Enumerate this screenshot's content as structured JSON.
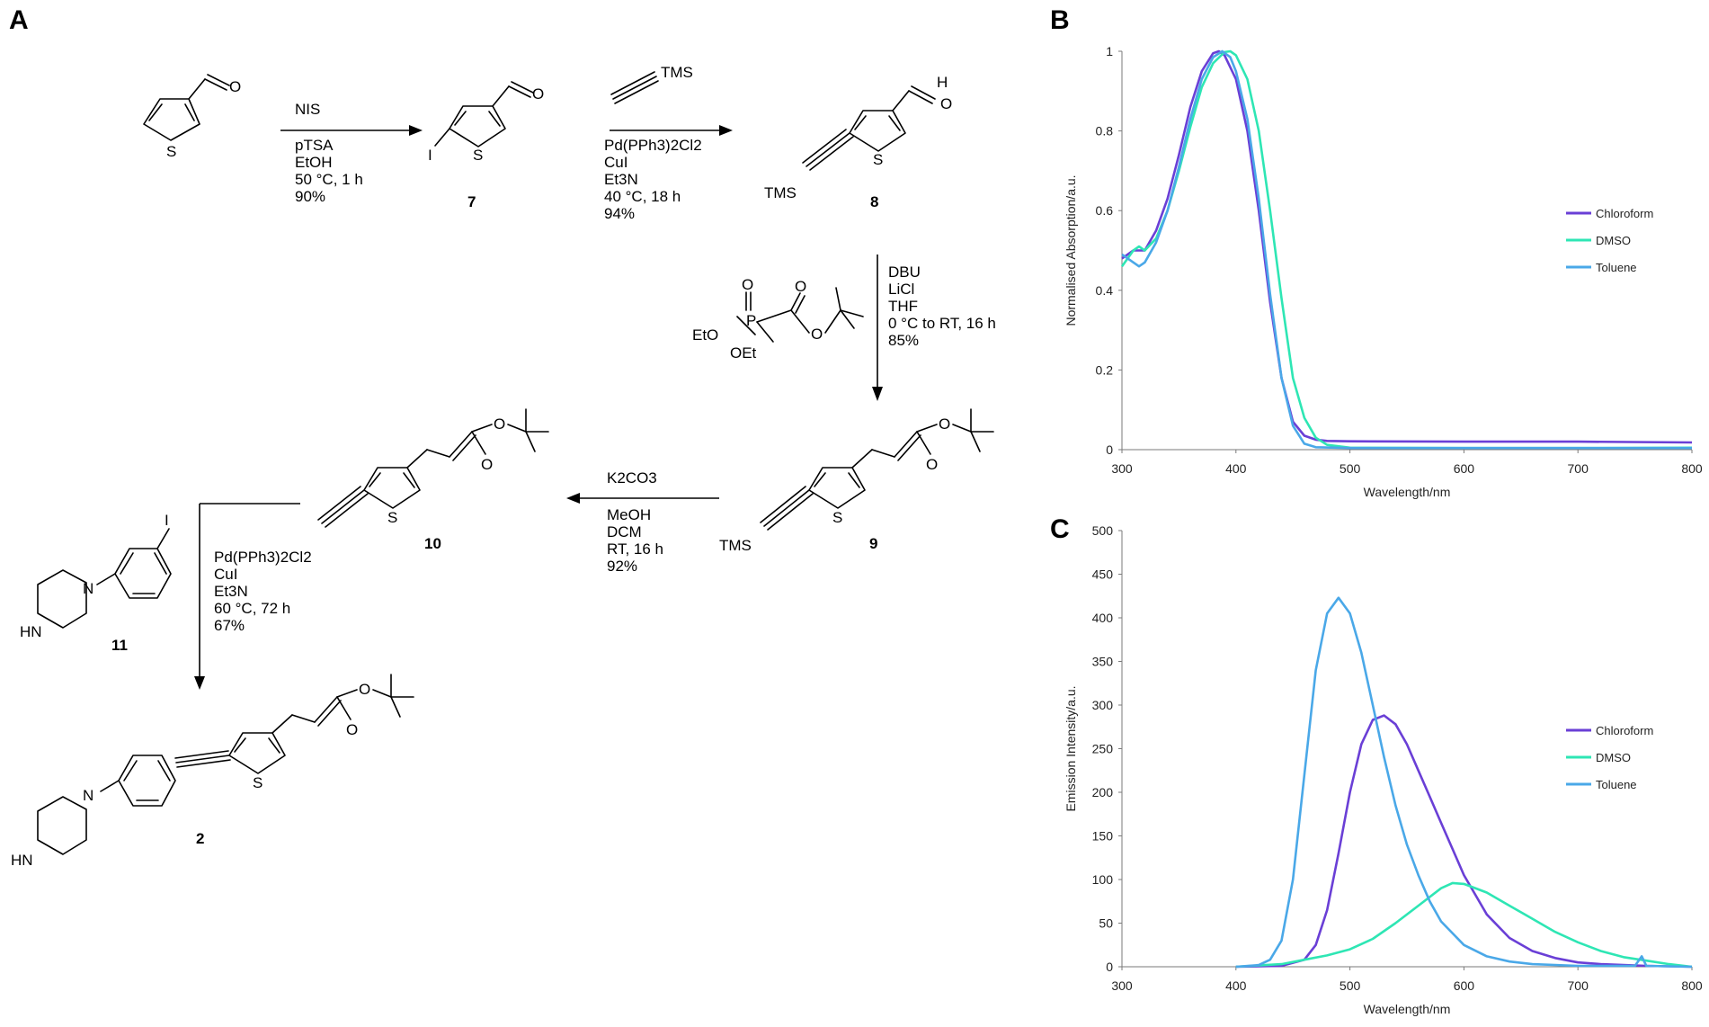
{
  "panels": {
    "A": "A",
    "B": "B",
    "C": "C"
  },
  "scheme": {
    "steps": {
      "s1": [
        "NIS",
        "pTSA",
        "EtOH",
        "50 °C, 1 h",
        "90%"
      ],
      "s2_top": "TMS",
      "s2": [
        "Pd(PPh3)2Cl2",
        "CuI",
        "Et3N",
        "40 °C, 18 h",
        "94%"
      ],
      "s3_reagent": [
        "EtO",
        "OEt",
        "P",
        "O",
        "O",
        "O"
      ],
      "s3": [
        "DBU",
        "LiCl",
        "THF",
        "0 °C to RT, 16 h",
        "85%"
      ],
      "s4": [
        "K2CO3",
        "MeOH",
        "DCM",
        "RT, 16 h",
        "92%"
      ],
      "s5": [
        "Pd(PPh3)2Cl2",
        "CuI",
        "Et3N",
        "60 °C, 72 h",
        "67%"
      ]
    },
    "atoms": {
      "S": "S",
      "O": "O",
      "H": "H",
      "I": "I",
      "TMS": "TMS",
      "HN": "HN",
      "N": "N"
    },
    "compounds": {
      "c7": "7",
      "c8": "8",
      "c9": "9",
      "c10": "10",
      "c11": "11",
      "c2": "2"
    }
  },
  "colors": {
    "chloroform": "#6a3fd6",
    "dmso": "#2ee6b4",
    "toluene": "#4aa8e8",
    "axis": "#7a7a7a"
  },
  "chart_data": [
    {
      "id": "B",
      "type": "line",
      "xlabel": "Wavelength/nm",
      "ylabel": "Normalised Absorption/a.u.",
      "xlim": [
        300,
        800
      ],
      "ylim": [
        0,
        1
      ],
      "xticks": [
        300,
        400,
        500,
        600,
        700,
        800
      ],
      "yticks": [
        0,
        0.2,
        0.4,
        0.6,
        0.8,
        1
      ],
      "legend_position": "right",
      "series": [
        {
          "name": "Chloroform",
          "color": "#6a3fd6",
          "x": [
            300,
            310,
            320,
            330,
            340,
            350,
            360,
            370,
            380,
            385,
            390,
            400,
            410,
            420,
            430,
            440,
            450,
            460,
            470,
            480,
            500,
            600,
            700,
            800
          ],
          "y": [
            0.48,
            0.5,
            0.5,
            0.55,
            0.63,
            0.74,
            0.86,
            0.95,
            0.995,
            1.0,
            0.99,
            0.93,
            0.8,
            0.6,
            0.37,
            0.18,
            0.07,
            0.035,
            0.025,
            0.022,
            0.021,
            0.02,
            0.02,
            0.018
          ]
        },
        {
          "name": "DMSO",
          "color": "#2ee6b4",
          "x": [
            300,
            310,
            315,
            320,
            330,
            340,
            350,
            360,
            370,
            380,
            390,
            395,
            400,
            410,
            420,
            430,
            440,
            450,
            460,
            470,
            480,
            500,
            600,
            700,
            800
          ],
          "y": [
            0.46,
            0.5,
            0.51,
            0.5,
            0.53,
            0.6,
            0.7,
            0.81,
            0.91,
            0.97,
            0.998,
            1.0,
            0.99,
            0.93,
            0.8,
            0.6,
            0.38,
            0.18,
            0.08,
            0.03,
            0.012,
            0.005,
            0.004,
            0.004,
            0.005
          ]
        },
        {
          "name": "Toluene",
          "color": "#4aa8e8",
          "x": [
            300,
            310,
            315,
            320,
            330,
            340,
            350,
            360,
            370,
            380,
            388,
            395,
            400,
            410,
            420,
            430,
            440,
            450,
            460,
            470,
            500,
            600,
            700,
            800
          ],
          "y": [
            0.49,
            0.47,
            0.46,
            0.47,
            0.52,
            0.6,
            0.71,
            0.83,
            0.93,
            0.985,
            1.0,
            0.985,
            0.95,
            0.83,
            0.63,
            0.39,
            0.18,
            0.06,
            0.015,
            0.006,
            0.004,
            0.004,
            0.004,
            0.004
          ]
        }
      ]
    },
    {
      "id": "C",
      "type": "line",
      "xlabel": "Wavelength/nm",
      "ylabel": "Emission Intensity/a.u.",
      "xlim": [
        300,
        800
      ],
      "ylim": [
        0,
        500
      ],
      "xticks": [
        300,
        400,
        500,
        600,
        700,
        800
      ],
      "yticks": [
        0,
        50,
        100,
        150,
        200,
        250,
        300,
        350,
        400,
        450,
        500
      ],
      "legend_position": "right",
      "series": [
        {
          "name": "Chloroform",
          "color": "#6a3fd6",
          "x": [
            400,
            440,
            460,
            470,
            480,
            490,
            500,
            510,
            520,
            530,
            540,
            550,
            560,
            570,
            580,
            590,
            600,
            620,
            640,
            660,
            680,
            700,
            720,
            740,
            760,
            800
          ],
          "y": [
            0,
            1,
            8,
            25,
            65,
            130,
            200,
            255,
            283,
            288,
            278,
            255,
            225,
            195,
            165,
            135,
            105,
            60,
            33,
            18,
            10,
            5,
            3,
            2,
            1,
            0
          ]
        },
        {
          "name": "DMSO",
          "color": "#2ee6b4",
          "x": [
            400,
            440,
            460,
            480,
            500,
            520,
            540,
            560,
            580,
            590,
            600,
            620,
            640,
            660,
            680,
            700,
            720,
            740,
            760,
            780,
            800
          ],
          "y": [
            0,
            3,
            8,
            13,
            20,
            32,
            50,
            70,
            90,
            96,
            95,
            85,
            70,
            55,
            40,
            28,
            18,
            11,
            7,
            3,
            0
          ]
        },
        {
          "name": "Toluene",
          "color": "#4aa8e8",
          "x": [
            400,
            420,
            430,
            440,
            450,
            460,
            470,
            480,
            490,
            500,
            510,
            520,
            530,
            540,
            550,
            560,
            570,
            580,
            600,
            620,
            640,
            660,
            700,
            750,
            756,
            760,
            800
          ],
          "y": [
            0,
            2,
            8,
            30,
            100,
            220,
            340,
            405,
            423,
            405,
            360,
            300,
            240,
            185,
            140,
            105,
            75,
            52,
            25,
            12,
            6,
            3,
            1,
            1,
            12,
            1,
            0
          ]
        }
      ]
    }
  ]
}
